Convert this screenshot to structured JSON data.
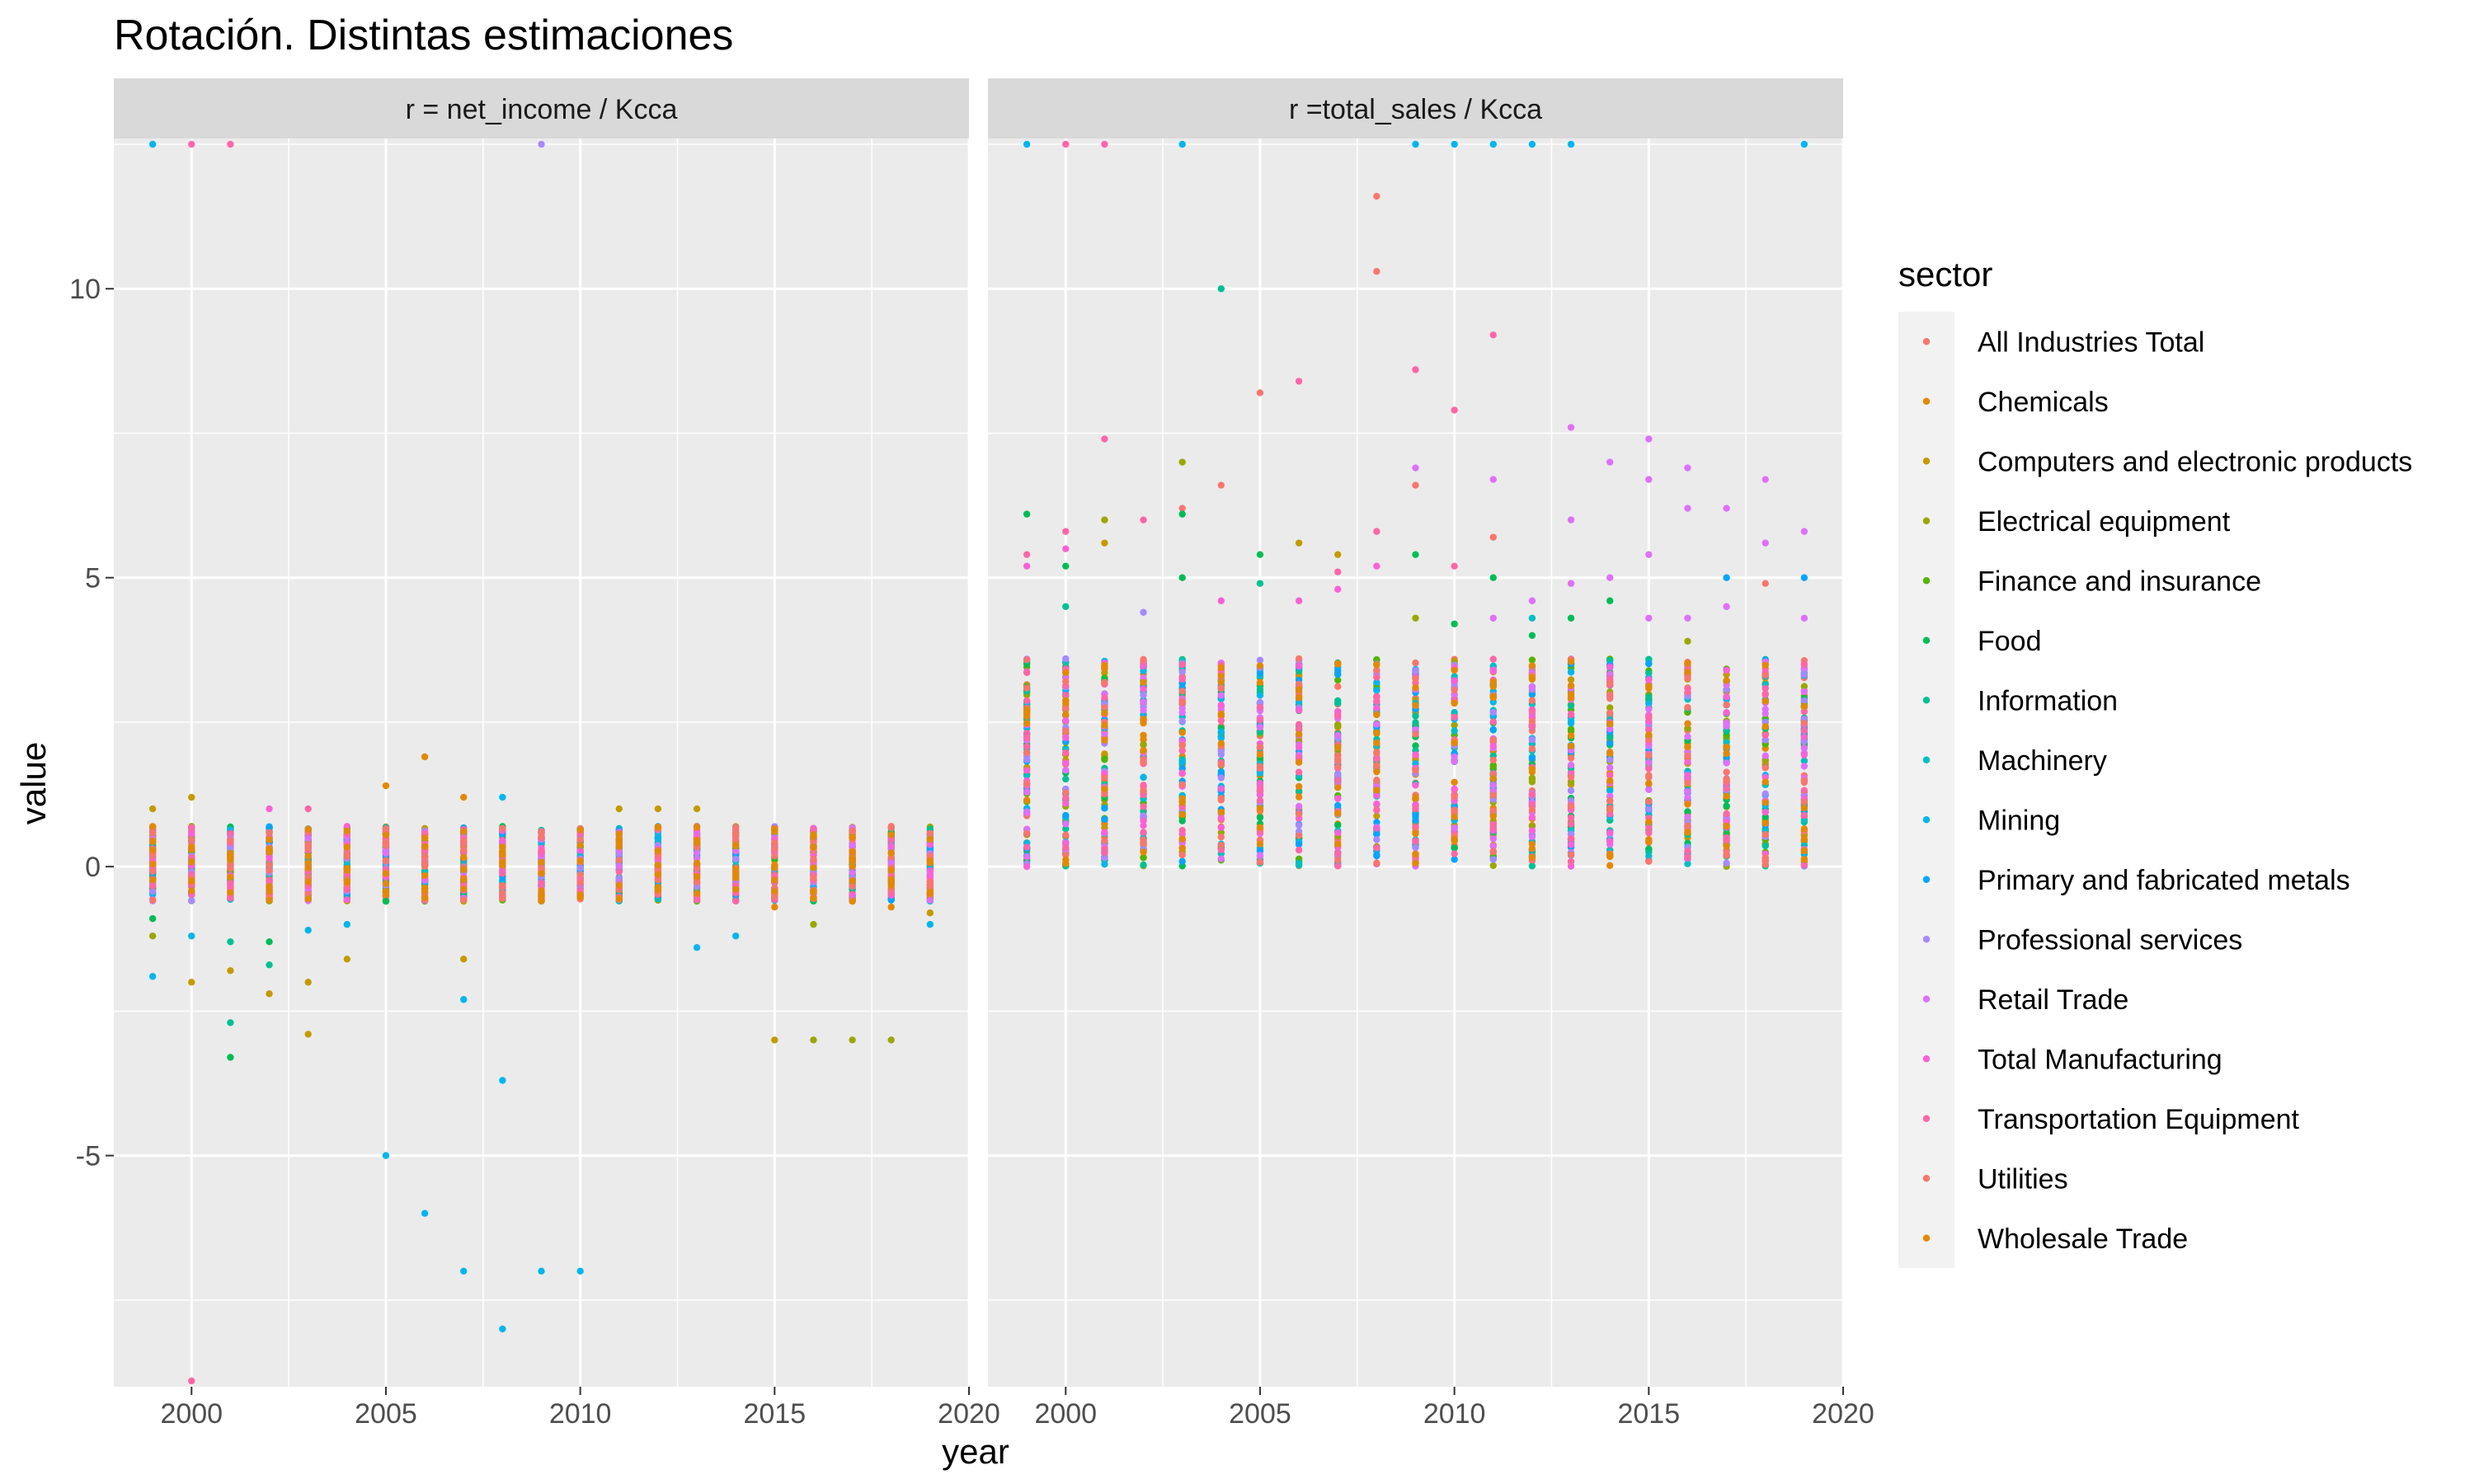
{
  "chart_data": {
    "type": "scatter",
    "title": "Rotación. Distintas estimaciones",
    "xlabel": "year",
    "ylabel": "value",
    "xlim": [
      1998,
      2020
    ],
    "ylim": [
      -9,
      12.6
    ],
    "x_ticks": [
      2000,
      2005,
      2010,
      2015,
      2020
    ],
    "y_ticks": [
      -5,
      0,
      5,
      10
    ],
    "y_tick_labels": [
      "-5",
      "0",
      "5",
      "10"
    ],
    "grid": true,
    "legend": {
      "title": "sector",
      "position": "right"
    },
    "sectors": [
      {
        "name": "All Industries Total",
        "color": "#F8766D"
      },
      {
        "name": "Chemicals",
        "color": "#E38900"
      },
      {
        "name": "Computers and electronic products",
        "color": "#C49A00"
      },
      {
        "name": "Electrical equipment",
        "color": "#99A800"
      },
      {
        "name": "Finance and insurance",
        "color": "#53B400"
      },
      {
        "name": "Food",
        "color": "#00BC56"
      },
      {
        "name": "Information",
        "color": "#00C094"
      },
      {
        "name": "Machinery",
        "color": "#00BFC4"
      },
      {
        "name": "Mining",
        "color": "#00B6EB"
      },
      {
        "name": "Primary and fabricated metals",
        "color": "#06A4FF"
      },
      {
        "name": "Professional services",
        "color": "#A58AFF"
      },
      {
        "name": "Retail Trade",
        "color": "#DF70F8"
      },
      {
        "name": "Total Manufacturing",
        "color": "#FB61D7"
      },
      {
        "name": "Transportation Equipment",
        "color": "#FF66A8"
      },
      {
        "name": "Utilities",
        "color": "#F8766D"
      },
      {
        "name": "Wholesale Trade",
        "color": "#E38900"
      }
    ],
    "panels": [
      {
        "strip": "r = net_income / Kcca",
        "band_range": [
          -0.6,
          0.7
        ],
        "outliers": [
          [
            1999,
            12.5,
            8
          ],
          [
            2000,
            12.5,
            13
          ],
          [
            2001,
            12.5,
            13
          ],
          [
            2009,
            12.5,
            10
          ],
          [
            1999,
            1.0,
            2
          ],
          [
            1999,
            -0.9,
            5
          ],
          [
            1999,
            -1.2,
            3
          ],
          [
            1999,
            -1.9,
            8
          ],
          [
            2000,
            1.2,
            2
          ],
          [
            2000,
            -1.2,
            8
          ],
          [
            2000,
            -2.0,
            2
          ],
          [
            2000,
            -8.9,
            13
          ],
          [
            2001,
            -1.3,
            6
          ],
          [
            2001,
            -1.8,
            2
          ],
          [
            2001,
            -2.7,
            6
          ],
          [
            2001,
            -3.3,
            5
          ],
          [
            2002,
            1.0,
            12
          ],
          [
            2002,
            -1.3,
            5
          ],
          [
            2002,
            -1.7,
            6
          ],
          [
            2002,
            -2.2,
            2
          ],
          [
            2003,
            1.0,
            13
          ],
          [
            2003,
            -1.1,
            8
          ],
          [
            2003,
            -2.0,
            2
          ],
          [
            2003,
            -2.9,
            2
          ],
          [
            2004,
            -1.0,
            8
          ],
          [
            2004,
            -1.6,
            2
          ],
          [
            2005,
            1.4,
            1
          ],
          [
            2005,
            -0.6,
            5
          ],
          [
            2005,
            -5.0,
            8
          ],
          [
            2006,
            1.9,
            1
          ],
          [
            2006,
            -6.0,
            8
          ],
          [
            2007,
            1.2,
            1
          ],
          [
            2007,
            -1.6,
            2
          ],
          [
            2007,
            -2.3,
            8
          ],
          [
            2007,
            -7.0,
            8
          ],
          [
            2008,
            1.2,
            8
          ],
          [
            2008,
            -3.7,
            8
          ],
          [
            2008,
            -8.0,
            8
          ],
          [
            2009,
            -7.0,
            8
          ],
          [
            2010,
            -7.0,
            8
          ],
          [
            2011,
            1.0,
            2
          ],
          [
            2012,
            1.0,
            2
          ],
          [
            2013,
            1.0,
            2
          ],
          [
            2013,
            -1.4,
            8
          ],
          [
            2014,
            -1.2,
            8
          ],
          [
            2015,
            -3.0,
            2
          ],
          [
            2015,
            -0.7,
            1
          ],
          [
            2016,
            -3.0,
            3
          ],
          [
            2016,
            -1.0,
            3
          ],
          [
            2017,
            -3.0,
            3
          ],
          [
            2017,
            -0.6,
            1
          ],
          [
            2018,
            -3.0,
            3
          ],
          [
            2018,
            -0.7,
            1
          ],
          [
            2019,
            -0.8,
            2
          ],
          [
            2019,
            -1.0,
            8
          ]
        ]
      },
      {
        "strip": "r =total_sales / Kcca",
        "band_range": [
          0.0,
          3.6
        ],
        "outliers": [
          [
            1999,
            12.5,
            8
          ],
          [
            2000,
            12.5,
            13
          ],
          [
            2001,
            12.5,
            13
          ],
          [
            2003,
            12.5,
            8
          ],
          [
            2009,
            12.5,
            8
          ],
          [
            2010,
            12.5,
            8
          ],
          [
            2011,
            12.5,
            8
          ],
          [
            2012,
            12.5,
            8
          ],
          [
            2013,
            12.5,
            8
          ],
          [
            2019,
            12.5,
            8
          ],
          [
            1999,
            6.1,
            5
          ],
          [
            1999,
            5.4,
            13
          ],
          [
            1999,
            5.2,
            12
          ],
          [
            2000,
            5.8,
            13
          ],
          [
            2000,
            5.5,
            12
          ],
          [
            2000,
            5.2,
            5
          ],
          [
            2000,
            4.5,
            6
          ],
          [
            2001,
            7.4,
            13
          ],
          [
            2001,
            6.0,
            3
          ],
          [
            2001,
            5.6,
            2
          ],
          [
            2002,
            6.0,
            13
          ],
          [
            2002,
            4.4,
            10
          ],
          [
            2003,
            7.0,
            3
          ],
          [
            2003,
            6.2,
            14
          ],
          [
            2003,
            6.1,
            5
          ],
          [
            2003,
            5.0,
            5
          ],
          [
            2004,
            10.0,
            6
          ],
          [
            2004,
            6.6,
            14
          ],
          [
            2004,
            4.6,
            12
          ],
          [
            2005,
            8.2,
            14
          ],
          [
            2005,
            5.4,
            5
          ],
          [
            2005,
            4.9,
            6
          ],
          [
            2006,
            8.4,
            13
          ],
          [
            2006,
            5.6,
            2
          ],
          [
            2006,
            4.6,
            12
          ],
          [
            2007,
            5.4,
            2
          ],
          [
            2007,
            5.1,
            13
          ],
          [
            2007,
            4.8,
            12
          ],
          [
            2008,
            11.6,
            14
          ],
          [
            2008,
            10.3,
            14
          ],
          [
            2008,
            5.8,
            13
          ],
          [
            2008,
            5.2,
            12
          ],
          [
            2009,
            8.6,
            13
          ],
          [
            2009,
            6.9,
            11
          ],
          [
            2009,
            6.6,
            14
          ],
          [
            2009,
            5.4,
            5
          ],
          [
            2009,
            4.3,
            3
          ],
          [
            2010,
            7.9,
            13
          ],
          [
            2010,
            5.2,
            13
          ],
          [
            2010,
            4.2,
            5
          ],
          [
            2011,
            9.2,
            13
          ],
          [
            2011,
            6.7,
            11
          ],
          [
            2011,
            5.7,
            14
          ],
          [
            2011,
            5.0,
            5
          ],
          [
            2011,
            4.3,
            11
          ],
          [
            2012,
            4.6,
            11
          ],
          [
            2012,
            4.3,
            7
          ],
          [
            2012,
            4.0,
            5
          ],
          [
            2013,
            7.6,
            11
          ],
          [
            2013,
            6.0,
            11
          ],
          [
            2013,
            4.9,
            11
          ],
          [
            2013,
            4.3,
            5
          ],
          [
            2014,
            7.0,
            11
          ],
          [
            2014,
            5.0,
            11
          ],
          [
            2014,
            4.6,
            5
          ],
          [
            2015,
            7.4,
            11
          ],
          [
            2015,
            6.7,
            11
          ],
          [
            2015,
            5.4,
            11
          ],
          [
            2015,
            4.3,
            11
          ],
          [
            2016,
            6.9,
            11
          ],
          [
            2016,
            6.2,
            11
          ],
          [
            2016,
            4.3,
            11
          ],
          [
            2016,
            3.9,
            3
          ],
          [
            2017,
            6.2,
            11
          ],
          [
            2017,
            5.0,
            9
          ],
          [
            2017,
            4.5,
            11
          ],
          [
            2018,
            6.7,
            11
          ],
          [
            2018,
            5.6,
            11
          ],
          [
            2018,
            4.9,
            14
          ],
          [
            2019,
            5.8,
            11
          ],
          [
            2019,
            5.0,
            9
          ],
          [
            2019,
            4.3,
            11
          ],
          [
            2019,
            3.5,
            13
          ]
        ]
      }
    ]
  }
}
